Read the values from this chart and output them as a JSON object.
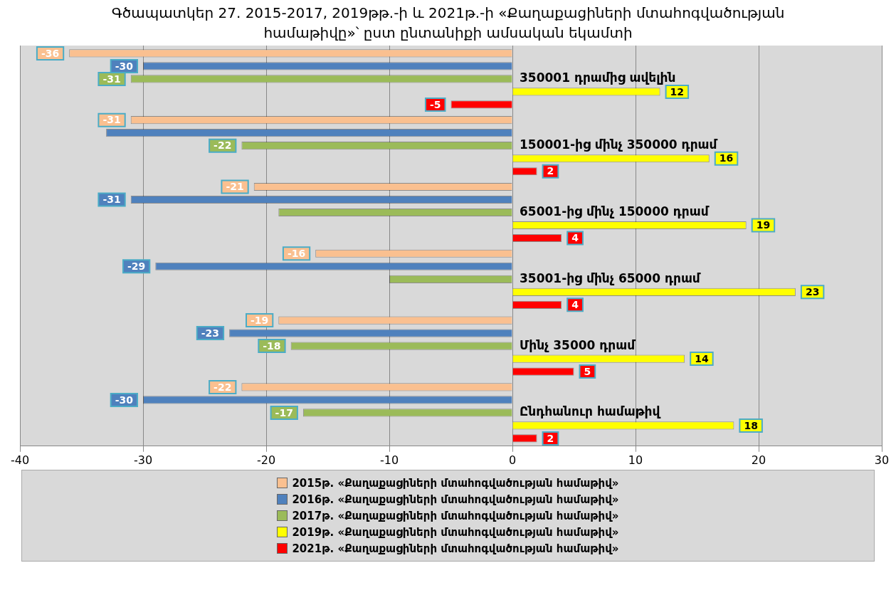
{
  "chart_data": {
    "type": "bar",
    "orientation": "horizontal",
    "title": "Գծապատկեր 27. 2015-2017, 2019թթ.-ի և 2021թ.-ի «Քաղաքացիների մտահոգվածության համաթիվը»՝ ըստ ընտանիքի ամսական եկամտի",
    "categories": [
      "350001 դրամից ավելին",
      "150001-ից մինչ 350000 դրամ",
      "65001-ից մինչ 150000 դրամ",
      "35001-ից մինչ 65000 դրամ",
      "Մինչ 35000 դրամ",
      "Ընդհանուր համաթիվ"
    ],
    "series": [
      {
        "name": "2015թ. «Քաղաքացիների մտահոգվածության համաթիվ»",
        "color": "#fac090",
        "values": [
          -36,
          -31,
          -21,
          -16,
          -19,
          -22
        ],
        "value_labels": [
          "-36",
          "-31",
          "-21",
          "-16",
          "-19",
          "-22"
        ]
      },
      {
        "name": "2016թ. «Քաղաքացիների մտահոգվածության համաթիվ»",
        "color": "#4f81bd",
        "values": [
          -30,
          -33,
          -31,
          -29,
          -23,
          -30
        ],
        "value_labels": [
          "-30",
          null,
          "-31",
          "-29",
          "-23",
          "-30"
        ]
      },
      {
        "name": "2017թ. «Քաղաքացիների մտահոգվածության համաթիվ»",
        "color": "#9bbb59",
        "values": [
          -31,
          -22,
          -19,
          -10,
          -18,
          -17
        ],
        "value_labels": [
          "-31",
          "-22",
          null,
          null,
          "-18",
          "-17"
        ]
      },
      {
        "name": "2019թ. «Քաղաքացիների մտահոգվածության համաթիվ»",
        "color": "#ffff00",
        "values": [
          12,
          16,
          19,
          23,
          14,
          18
        ],
        "value_labels": [
          "12",
          "16",
          "19",
          "23",
          "14",
          "18"
        ]
      },
      {
        "name": "2021թ. «Քաղաքացիների մտահոգվածության համաթիվ»",
        "color": "#ff0000",
        "values": [
          -5,
          2,
          4,
          4,
          5,
          2
        ],
        "value_labels": [
          "-5",
          "2",
          "4",
          "4",
          "5",
          "2"
        ]
      }
    ],
    "xlim": [
      -40,
      30
    ],
    "xticks": [
      -40,
      -30,
      -20,
      -10,
      0,
      10,
      20,
      30
    ],
    "grid": "x",
    "legend": "bottom"
  }
}
